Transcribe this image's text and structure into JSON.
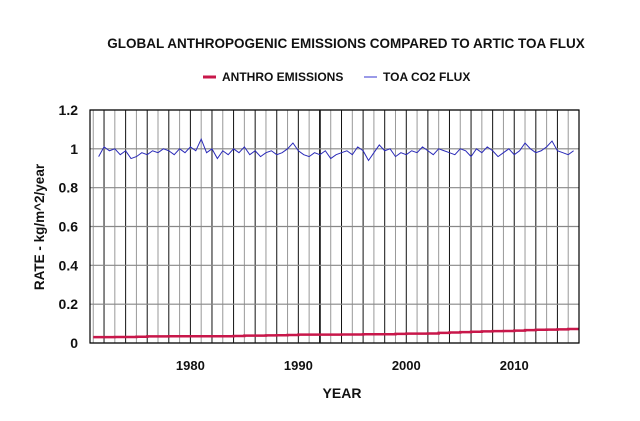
{
  "chart_data": {
    "type": "line",
    "title": "GLOBAL ANTHROPOGENIC EMISSIONS COMPARED TO ARTIC TOA FLUX",
    "xlabel": "YEAR",
    "ylabel": "RATE - kg/m^2/year",
    "xlim": [
      1970.7,
      2016
    ],
    "ylim": [
      0,
      1.2
    ],
    "yticks": [
      "0",
      "0.2",
      "0.4",
      "0.6",
      "0.8",
      "1",
      "1.2"
    ],
    "xticks": [
      "1980",
      "1990",
      "2000",
      "2010"
    ],
    "grid": true,
    "legend_position": "top",
    "series": [
      {
        "name": "ANTHRO EMISSIONS",
        "color": "#c8174a",
        "x_start": 1971.5,
        "x_step": 1,
        "values": [
          0.03,
          0.03,
          0.031,
          0.031,
          0.032,
          0.034,
          0.034,
          0.035,
          0.035,
          0.035,
          0.035,
          0.035,
          0.035,
          0.036,
          0.038,
          0.038,
          0.039,
          0.04,
          0.041,
          0.043,
          0.043,
          0.043,
          0.043,
          0.044,
          0.044,
          0.045,
          0.045,
          0.045,
          0.047,
          0.048,
          0.048,
          0.049,
          0.052,
          0.054,
          0.056,
          0.058,
          0.06,
          0.061,
          0.062,
          0.064,
          0.066,
          0.068,
          0.069,
          0.07,
          0.072
        ]
      },
      {
        "name": "TOA CO2 FLUX",
        "color": "#2a2ab8",
        "x_start": 1971.5,
        "x_step": 0.5,
        "values": [
          0.96,
          1.01,
          0.99,
          1.0,
          0.97,
          0.99,
          0.95,
          0.96,
          0.98,
          0.97,
          0.99,
          0.98,
          1.0,
          0.99,
          0.97,
          1.0,
          0.98,
          1.01,
          0.99,
          1.05,
          0.98,
          1.0,
          0.95,
          0.99,
          0.97,
          1.0,
          0.98,
          1.01,
          0.97,
          0.99,
          0.96,
          0.98,
          0.99,
          0.97,
          0.98,
          1.0,
          1.03,
          0.99,
          0.97,
          0.96,
          0.98,
          0.97,
          0.99,
          0.95,
          0.97,
          0.98,
          0.99,
          0.97,
          1.01,
          0.99,
          0.94,
          0.98,
          1.02,
          0.99,
          1.0,
          0.96,
          0.98,
          0.97,
          0.99,
          0.98,
          1.01,
          0.99,
          0.97,
          1.0,
          0.99,
          0.98,
          0.97,
          1.0,
          0.99,
          0.96,
          1.0,
          0.98,
          1.01,
          0.99,
          0.96,
          0.98,
          1.0,
          0.97,
          0.99,
          1.03,
          1.0,
          0.98,
          0.99,
          1.01,
          1.04,
          0.99,
          0.98,
          0.97,
          0.99
        ]
      }
    ]
  }
}
